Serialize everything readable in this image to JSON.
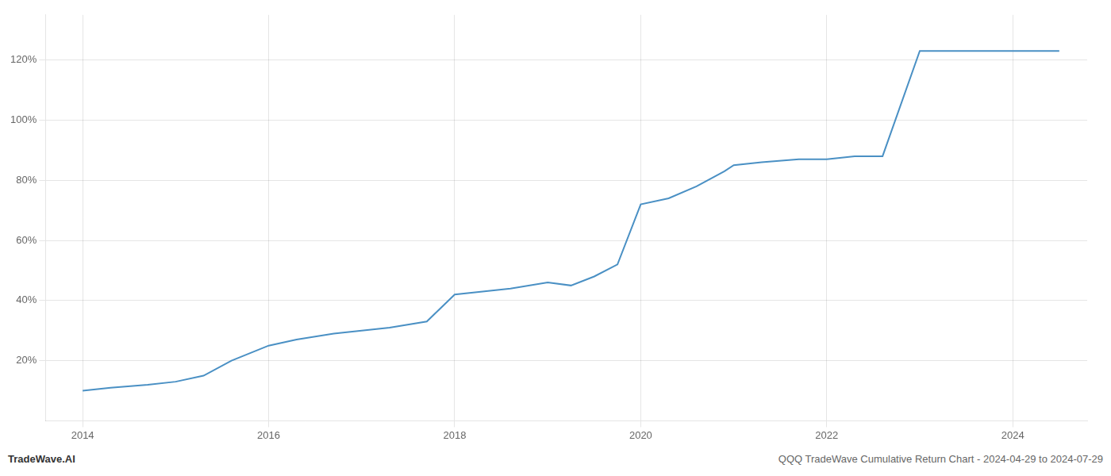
{
  "chart_data": {
    "type": "line",
    "x": [
      2014.0,
      2014.3,
      2014.7,
      2015.0,
      2015.3,
      2015.6,
      2016.0,
      2016.3,
      2016.7,
      2017.0,
      2017.3,
      2017.7,
      2018.0,
      2018.3,
      2018.6,
      2019.0,
      2019.25,
      2019.5,
      2019.75,
      2020.0,
      2020.3,
      2020.6,
      2020.9,
      2021.0,
      2021.3,
      2021.7,
      2022.0,
      2022.3,
      2022.6,
      2023.0,
      2023.3,
      2023.6,
      2024.0,
      2024.25,
      2024.5
    ],
    "values": [
      10,
      11,
      12,
      13,
      15,
      20,
      25,
      27,
      29,
      30,
      31,
      33,
      42,
      43,
      44,
      46,
      45,
      48,
      52,
      72,
      74,
      78,
      83,
      85,
      86,
      87,
      87,
      88,
      88,
      123,
      123,
      123,
      123,
      123,
      123
    ],
    "color": "#4a90c4",
    "xlim": [
      2013.6,
      2024.8
    ],
    "ylim": [
      0,
      135
    ],
    "xticks": [
      2014,
      2016,
      2018,
      2020,
      2022,
      2024
    ],
    "yticks": [
      {
        "value": 20,
        "label": "20%"
      },
      {
        "value": 40,
        "label": "40%"
      },
      {
        "value": 60,
        "label": "60%"
      },
      {
        "value": 80,
        "label": "80%"
      },
      {
        "value": 100,
        "label": "100%"
      },
      {
        "value": 120,
        "label": "120%"
      }
    ],
    "grid": true,
    "annotations": [
      "TradeWave.AI",
      "QQQ TradeWave Cumulative Return Chart - 2024-04-29 to 2024-07-29"
    ]
  }
}
